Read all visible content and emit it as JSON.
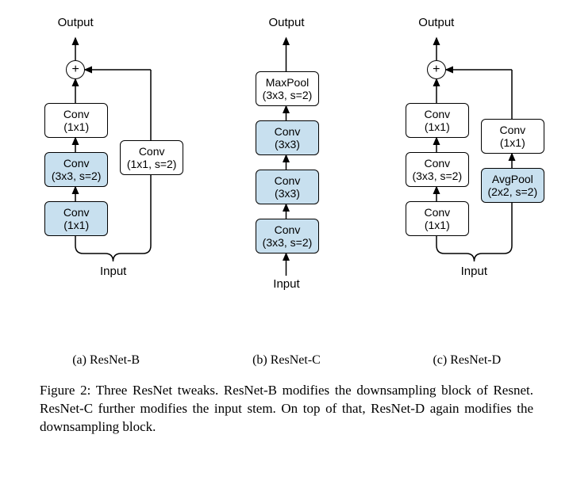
{
  "labels": {
    "output": "Output",
    "input": "Input"
  },
  "colors": {
    "box_plain": "#ffffff",
    "box_blue": "#c8e0ef",
    "border": "#000000",
    "text": "#000000"
  },
  "font": {
    "box_fontsize": 14,
    "label_fontsize": 15,
    "caption_fontsize": 17,
    "subcaption_fontsize": 16
  },
  "diagrams": [
    {
      "id": "resnet-b",
      "subcaption": "(a) ResNet-B",
      "has_sum": true,
      "main_path": [
        {
          "name": "conv-1x1-top",
          "lines": [
            "Conv",
            "(1x1)"
          ],
          "blue": false
        },
        {
          "name": "conv-3x3-s2",
          "lines": [
            "Conv",
            "(3x3, s=2)"
          ],
          "blue": true
        },
        {
          "name": "conv-1x1-bot",
          "lines": [
            "Conv",
            "(1x1)"
          ],
          "blue": true
        }
      ],
      "side_path": [
        {
          "name": "conv-1x1-s2",
          "lines": [
            "Conv",
            "(1x1, s=2)"
          ],
          "blue": false
        }
      ]
    },
    {
      "id": "resnet-c",
      "subcaption": "(b) ResNet-C",
      "has_sum": false,
      "main_path": [
        {
          "name": "maxpool-3x3-s2",
          "lines": [
            "MaxPool",
            "(3x3, s=2)"
          ],
          "blue": false
        },
        {
          "name": "conv-3x3-a",
          "lines": [
            "Conv",
            "(3x3)"
          ],
          "blue": true
        },
        {
          "name": "conv-3x3-b",
          "lines": [
            "Conv",
            "(3x3)"
          ],
          "blue": true
        },
        {
          "name": "conv-3x3-s2",
          "lines": [
            "Conv",
            "(3x3, s=2)"
          ],
          "blue": true
        }
      ],
      "side_path": []
    },
    {
      "id": "resnet-d",
      "subcaption": "(c) ResNet-D",
      "has_sum": true,
      "main_path": [
        {
          "name": "conv-1x1-top",
          "lines": [
            "Conv",
            "(1x1)"
          ],
          "blue": false
        },
        {
          "name": "conv-3x3-s2",
          "lines": [
            "Conv",
            "(3x3, s=2)"
          ],
          "blue": false
        },
        {
          "name": "conv-1x1-bot",
          "lines": [
            "Conv",
            "(1x1)"
          ],
          "blue": false
        }
      ],
      "side_path": [
        {
          "name": "conv-1x1-side",
          "lines": [
            "Conv",
            "(1x1)"
          ],
          "blue": false
        },
        {
          "name": "avgpool-2x2-s2",
          "lines": [
            "AvgPool",
            "(2x2, s=2)"
          ],
          "blue": true
        }
      ]
    }
  ],
  "caption": "Figure 2: Three ResNet tweaks. ResNet-B modifies the downsampling block of Resnet. ResNet-C further modifies the input stem. On top of that, ResNet-D again modifies the downsampling block."
}
